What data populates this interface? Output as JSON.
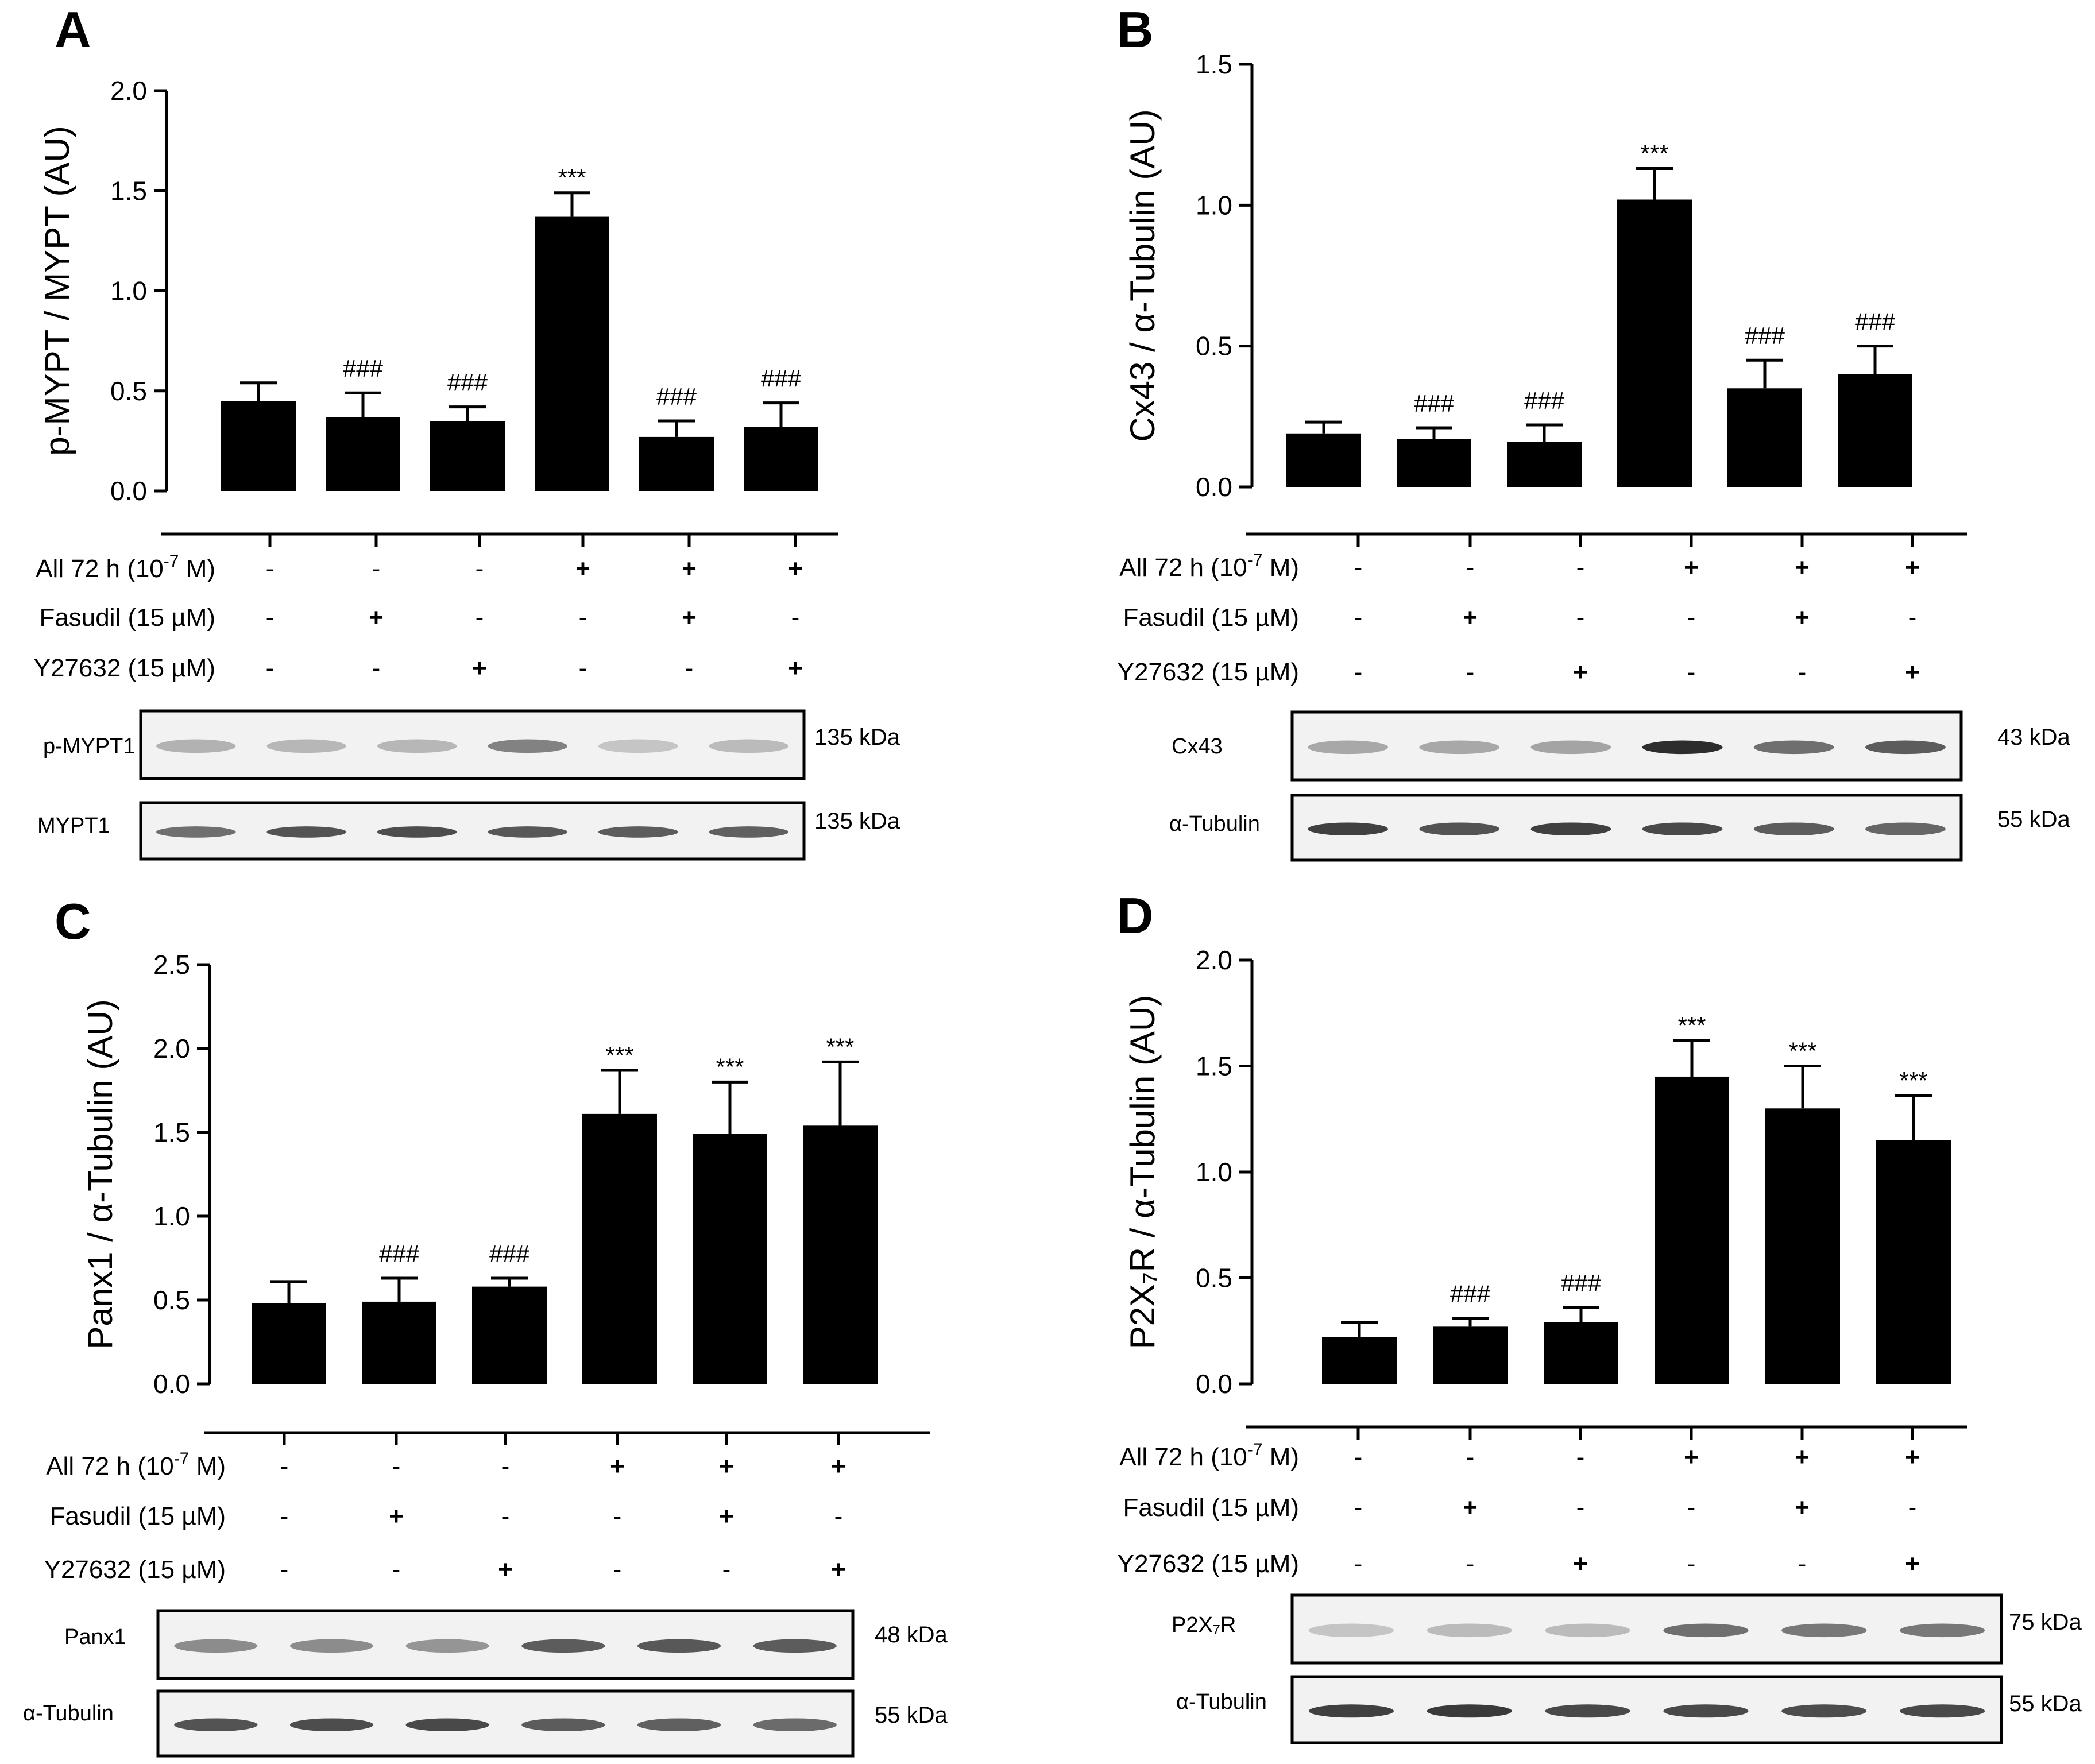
{
  "chart_data": [
    {
      "type": "bar",
      "panel": "A",
      "ylabel": "p-MYPT / MYPT (AU)",
      "ylim": [
        0,
        2.0
      ],
      "yticks": [
        "0.0",
        "0.5",
        "1.0",
        "1.5",
        "2.0"
      ],
      "values": [
        0.45,
        0.37,
        0.35,
        1.37,
        0.27,
        0.32
      ],
      "errors": [
        0.09,
        0.12,
        0.07,
        0.12,
        0.08,
        0.12
      ],
      "annotations": [
        "",
        "###",
        "###",
        "***",
        "###",
        "###"
      ],
      "treatments": [
        {
          "label": "All 72 h (10",
          "sup": "-7",
          "tail": " M)",
          "signs": [
            "-",
            "-",
            "-",
            "+",
            "+",
            "+"
          ]
        },
        {
          "label": "Fasudil (15 µM)",
          "signs": [
            "-",
            "+",
            "-",
            "-",
            "+",
            "-"
          ]
        },
        {
          "label": "Y27632 (15 µM)",
          "signs": [
            "-",
            "-",
            "+",
            "-",
            "-",
            "+"
          ]
        }
      ],
      "blots": [
        {
          "label": "p-MYPT1",
          "kda": "135 kDa",
          "intensity": [
            0.25,
            0.22,
            0.22,
            0.5,
            0.15,
            0.2
          ]
        },
        {
          "label": "MYPT1",
          "kda": "135 kDa",
          "intensity": [
            0.6,
            0.75,
            0.78,
            0.72,
            0.7,
            0.68
          ]
        }
      ]
    },
    {
      "type": "bar",
      "panel": "B",
      "ylabel": "Cx43 / α-Tubulin (AU)",
      "ylim": [
        0,
        1.5
      ],
      "yticks": [
        "0.0",
        "0.5",
        "1.0",
        "1.5"
      ],
      "values": [
        0.19,
        0.17,
        0.16,
        1.02,
        0.35,
        0.4
      ],
      "errors": [
        0.04,
        0.04,
        0.06,
        0.11,
        0.1,
        0.1
      ],
      "annotations": [
        "",
        "###",
        "###",
        "***",
        "###",
        "###"
      ],
      "treatments": [
        {
          "label": "All 72 h (10",
          "sup": "-7",
          "tail": " M)",
          "signs": [
            "-",
            "-",
            "-",
            "+",
            "+",
            "+"
          ]
        },
        {
          "label": "Fasudil (15 µM)",
          "signs": [
            "-",
            "+",
            "-",
            "-",
            "+",
            "-"
          ]
        },
        {
          "label": "Y27632 (15 µM)",
          "signs": [
            "-",
            "-",
            "+",
            "-",
            "-",
            "+"
          ]
        }
      ],
      "blots": [
        {
          "label": "Cx43",
          "kda": "43 kDa",
          "intensity": [
            0.3,
            0.3,
            0.32,
            0.95,
            0.6,
            0.7
          ]
        },
        {
          "label": "α-Tubulin",
          "kda": "55 kDa",
          "intensity": [
            0.85,
            0.75,
            0.85,
            0.8,
            0.7,
            0.65
          ]
        }
      ]
    },
    {
      "type": "bar",
      "panel": "C",
      "ylabel": "Panx1 / α-Tubulin (AU)",
      "ylim": [
        0,
        2.5
      ],
      "yticks": [
        "0.0",
        "0.5",
        "1.0",
        "1.5",
        "2.0",
        "2.5"
      ],
      "values": [
        0.48,
        0.49,
        0.58,
        1.61,
        1.49,
        1.54
      ],
      "errors": [
        0.13,
        0.14,
        0.05,
        0.26,
        0.31,
        0.38
      ],
      "annotations": [
        "",
        "###",
        "###",
        "***",
        "***",
        "***"
      ],
      "treatments": [
        {
          "label": "All 72 h (10",
          "sup": "-7",
          "tail": " M)",
          "signs": [
            "-",
            "-",
            "-",
            "+",
            "+",
            "+"
          ]
        },
        {
          "label": "Fasudil (15 µM)",
          "signs": [
            "-",
            "+",
            "-",
            "-",
            "+",
            "-"
          ]
        },
        {
          "label": "Y27632 (15 µM)",
          "signs": [
            "-",
            "-",
            "+",
            "-",
            "-",
            "+"
          ]
        }
      ],
      "blots": [
        {
          "label": "Panx1",
          "kda": "48 kDa",
          "intensity": [
            0.45,
            0.45,
            0.4,
            0.7,
            0.72,
            0.7
          ]
        },
        {
          "label": "α-Tubulin",
          "kda": "55 kDa",
          "intensity": [
            0.75,
            0.78,
            0.8,
            0.7,
            0.68,
            0.62
          ]
        }
      ]
    },
    {
      "type": "bar",
      "panel": "D",
      "ylabel": "P2X₇R / α-Tubulin (AU)",
      "ylim": [
        0,
        2.0
      ],
      "yticks": [
        "0.0",
        "0.5",
        "1.0",
        "1.5",
        "2.0"
      ],
      "values": [
        0.22,
        0.27,
        0.29,
        1.45,
        1.3,
        1.15
      ],
      "errors": [
        0.07,
        0.04,
        0.07,
        0.17,
        0.2,
        0.21
      ],
      "annotations": [
        "",
        "###",
        "###",
        "***",
        "***",
        "***"
      ],
      "treatments": [
        {
          "label": "All 72 h (10",
          "sup": "-7",
          "tail": " M)",
          "signs": [
            "-",
            "-",
            "-",
            "+",
            "+",
            "+"
          ]
        },
        {
          "label": "Fasudil (15 µM)",
          "signs": [
            "-",
            "+",
            "-",
            "-",
            "+",
            "-"
          ]
        },
        {
          "label": "Y27632 (15 µM)",
          "signs": [
            "-",
            "-",
            "+",
            "-",
            "-",
            "+"
          ]
        }
      ],
      "blots": [
        {
          "label": "P2X₇R",
          "kda": "75 kDa",
          "intensity": [
            0.15,
            0.2,
            0.2,
            0.6,
            0.55,
            0.55
          ]
        },
        {
          "label": "α-Tubulin",
          "kda": "55 kDa",
          "intensity": [
            0.85,
            0.88,
            0.8,
            0.8,
            0.78,
            0.8
          ]
        }
      ]
    }
  ]
}
